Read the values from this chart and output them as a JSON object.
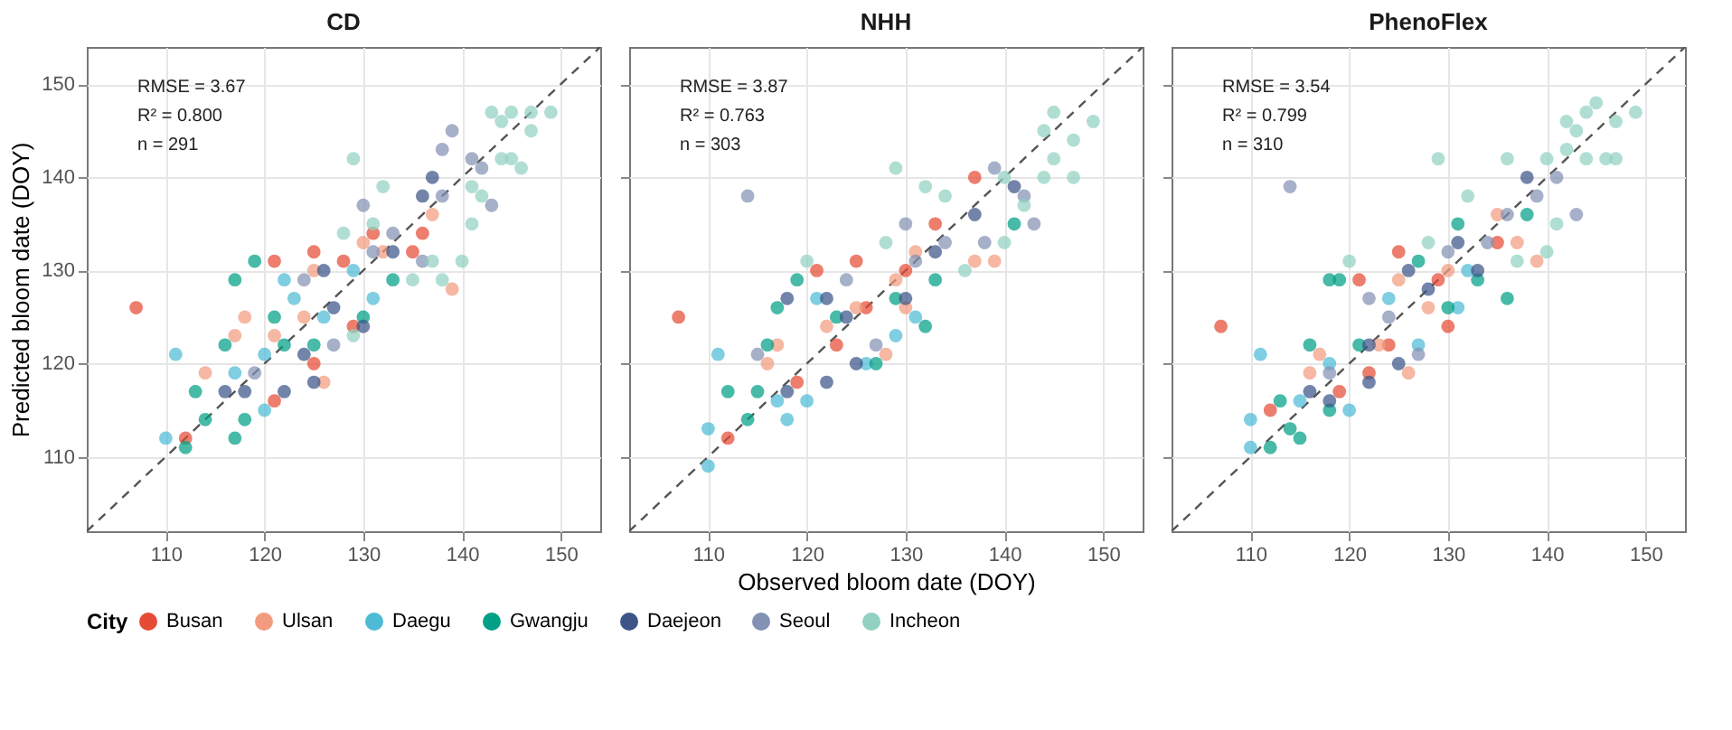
{
  "chart_data": [
    {
      "type": "scatter",
      "title": "CD",
      "ylabel": "Predicted bloom date (DOY)",
      "legend": "bottom",
      "legend_title": "City",
      "xlim": [
        102,
        154
      ],
      "ylim": [
        102,
        154
      ],
      "xticks": [
        110,
        120,
        130,
        140,
        150
      ],
      "yticks": [
        110,
        120,
        130,
        140,
        150
      ],
      "grid": true,
      "marker": "circle",
      "annotations": [
        "RMSE = 3.67",
        "R² = 0.800",
        "n = 291"
      ],
      "series": [
        {
          "name": "Busan",
          "color": "#e64b35",
          "x": [
            107,
            112,
            121,
            125,
            121,
            131,
            136,
            135,
            125,
            129,
            128
          ],
          "values": [
            126,
            112,
            116,
            132,
            131,
            134,
            134,
            132,
            120,
            124,
            131
          ]
        },
        {
          "name": "Ulsan",
          "color": "#f39b7f",
          "x": [
            139,
            118,
            117,
            114,
            126,
            121,
            124,
            130,
            125,
            137,
            132
          ],
          "values": [
            128,
            125,
            123,
            119,
            118,
            123,
            125,
            133,
            130,
            136,
            132
          ]
        },
        {
          "name": "Daegu",
          "color": "#4dbbd5",
          "x": [
            111,
            110,
            120,
            122,
            123,
            131,
            117,
            126,
            120,
            129
          ],
          "values": [
            121,
            112,
            115,
            129,
            127,
            127,
            119,
            125,
            121,
            130
          ]
        },
        {
          "name": "Gwangju",
          "color": "#00a087",
          "x": [
            119,
            117,
            113,
            114,
            117,
            118,
            116,
            130,
            133,
            121,
            122,
            125,
            112
          ],
          "values": [
            131,
            129,
            117,
            114,
            112,
            114,
            122,
            125,
            129,
            125,
            122,
            122,
            111
          ]
        },
        {
          "name": "Daejeon",
          "color": "#3c5488",
          "x": [
            118,
            122,
            116,
            125,
            126,
            124,
            130,
            133,
            137,
            136,
            127
          ],
          "values": [
            117,
            117,
            117,
            118,
            130,
            121,
            124,
            132,
            140,
            138,
            126
          ]
        },
        {
          "name": "Seoul",
          "color": "#8491b4",
          "x": [
            139,
            138,
            141,
            142,
            143,
            130,
            133,
            136,
            124,
            127,
            119,
            138,
            131
          ],
          "values": [
            145,
            143,
            142,
            141,
            137,
            137,
            134,
            131,
            129,
            122,
            119,
            138,
            132
          ]
        },
        {
          "name": "Incheon",
          "color": "#91d1c2",
          "x": [
            143,
            145,
            147,
            149,
            144,
            147,
            129,
            144,
            145,
            146,
            141,
            142,
            141,
            140,
            138,
            135,
            132,
            128,
            131,
            129,
            137
          ],
          "values": [
            147,
            147,
            147,
            147,
            146,
            145,
            142,
            142,
            142,
            141,
            139,
            138,
            135,
            131,
            129,
            129,
            139,
            134,
            135,
            123,
            131
          ]
        },
        {
          "type": "line",
          "marker": "none",
          "line_style": "dashed",
          "color": "#555555",
          "x": [
            102,
            154
          ],
          "values": [
            102,
            154
          ]
        }
      ]
    },
    {
      "type": "scatter",
      "title": "NHH",
      "xlabel": "Observed bloom date (DOY)",
      "xlim": [
        102,
        154
      ],
      "ylim": [
        102,
        154
      ],
      "xticks": [
        110,
        120,
        130,
        140,
        150
      ],
      "yticks": [
        110,
        120,
        130,
        140,
        150
      ],
      "grid": true,
      "marker": "circle",
      "tick_labels": "x",
      "annotations": [
        "RMSE = 3.87",
        "R² = 0.763",
        "n = 303"
      ],
      "series": [
        {
          "name": "Busan",
          "color": "#e64b35",
          "x": [
            107,
            112,
            137,
            121,
            125,
            130,
            133,
            123,
            119,
            126
          ],
          "values": [
            125,
            112,
            140,
            130,
            131,
            130,
            135,
            122,
            118,
            126
          ]
        },
        {
          "name": "Ulsan",
          "color": "#f39b7f",
          "x": [
            137,
            139,
            128,
            117,
            116,
            130,
            125,
            122,
            129,
            131
          ],
          "values": [
            131,
            131,
            121,
            122,
            120,
            126,
            126,
            124,
            129,
            132
          ]
        },
        {
          "name": "Daegu",
          "color": "#4dbbd5",
          "x": [
            110,
            110,
            111,
            118,
            120,
            131,
            129,
            121,
            126,
            117
          ],
          "values": [
            113,
            109,
            121,
            114,
            116,
            125,
            123,
            127,
            120,
            116
          ]
        },
        {
          "name": "Gwangju",
          "color": "#00a087",
          "x": [
            119,
            117,
            112,
            114,
            115,
            116,
            132,
            127,
            133,
            123,
            129,
            141
          ],
          "values": [
            129,
            126,
            117,
            114,
            117,
            122,
            124,
            120,
            129,
            125,
            127,
            135
          ]
        },
        {
          "name": "Daejeon",
          "color": "#3c5488",
          "x": [
            122,
            118,
            118,
            122,
            125,
            130,
            141,
            137,
            133,
            124
          ],
          "values": [
            118,
            117,
            127,
            127,
            120,
            127,
            139,
            136,
            132,
            125
          ]
        },
        {
          "name": "Seoul",
          "color": "#8491b4",
          "x": [
            114,
            139,
            142,
            143,
            130,
            134,
            124,
            115,
            127,
            138,
            131
          ],
          "values": [
            138,
            141,
            138,
            135,
            135,
            133,
            129,
            121,
            122,
            133,
            131
          ]
        },
        {
          "name": "Incheon",
          "color": "#91d1c2",
          "x": [
            145,
            144,
            149,
            147,
            145,
            147,
            144,
            129,
            132,
            134,
            140,
            142,
            140,
            136,
            120,
            128
          ],
          "values": [
            147,
            145,
            146,
            144,
            142,
            140,
            140,
            141,
            139,
            138,
            140,
            137,
            133,
            130,
            131,
            133
          ]
        },
        {
          "type": "line",
          "marker": "none",
          "line_style": "dashed",
          "color": "#555555",
          "x": [
            102,
            154
          ],
          "values": [
            102,
            154
          ]
        }
      ]
    },
    {
      "type": "scatter",
      "title": "PhenoFlex",
      "xlim": [
        102,
        154
      ],
      "ylim": [
        102,
        154
      ],
      "xticks": [
        110,
        120,
        130,
        140,
        150
      ],
      "yticks": [
        110,
        120,
        130,
        140,
        150
      ],
      "grid": true,
      "marker": "circle",
      "tick_labels": "x",
      "annotations": [
        "RMSE = 3.54",
        "R² = 0.799",
        "n = 310"
      ],
      "series": [
        {
          "name": "Busan",
          "color": "#e64b35",
          "x": [
            107,
            112,
            125,
            121,
            135,
            129,
            119,
            122,
            124,
            130
          ],
          "values": [
            124,
            115,
            132,
            129,
            133,
            129,
            117,
            119,
            122,
            124
          ]
        },
        {
          "name": "Ulsan",
          "color": "#f39b7f",
          "x": [
            139,
            137,
            135,
            126,
            117,
            116,
            123,
            128,
            130,
            125
          ],
          "values": [
            131,
            133,
            136,
            119,
            121,
            119,
            122,
            126,
            130,
            129
          ]
        },
        {
          "name": "Daegu",
          "color": "#4dbbd5",
          "x": [
            110,
            110,
            111,
            120,
            115,
            131,
            124,
            127,
            118,
            132
          ],
          "values": [
            111,
            114,
            121,
            115,
            116,
            126,
            127,
            122,
            120,
            130
          ]
        },
        {
          "name": "Gwangju",
          "color": "#00a087",
          "x": [
            112,
            114,
            115,
            113,
            118,
            119,
            116,
            118,
            136,
            131,
            138,
            127,
            130,
            133,
            121
          ],
          "values": [
            111,
            113,
            112,
            116,
            129,
            129,
            122,
            115,
            127,
            135,
            136,
            131,
            126,
            129,
            122
          ]
        },
        {
          "name": "Daejeon",
          "color": "#3c5488",
          "x": [
            118,
            122,
            116,
            125,
            126,
            133,
            138,
            131,
            122,
            128
          ],
          "values": [
            116,
            118,
            117,
            120,
            130,
            130,
            140,
            133,
            122,
            128
          ]
        },
        {
          "name": "Seoul",
          "color": "#8491b4",
          "x": [
            114,
            141,
            143,
            139,
            134,
            130,
            124,
            118,
            127,
            136,
            122
          ],
          "values": [
            139,
            140,
            136,
            138,
            133,
            132,
            125,
            119,
            121,
            136,
            127
          ]
        },
        {
          "name": "Incheon",
          "color": "#91d1c2",
          "x": [
            145,
            144,
            149,
            147,
            142,
            143,
            142,
            144,
            146,
            147,
            129,
            136,
            140,
            141,
            140,
            132,
            120,
            128,
            137
          ],
          "values": [
            148,
            147,
            147,
            146,
            146,
            145,
            143,
            142,
            142,
            142,
            142,
            142,
            142,
            135,
            132,
            138,
            131,
            133,
            131
          ]
        },
        {
          "type": "line",
          "marker": "none",
          "line_style": "dashed",
          "color": "#555555",
          "x": [
            102,
            154
          ],
          "values": [
            102,
            154
          ]
        }
      ]
    }
  ]
}
